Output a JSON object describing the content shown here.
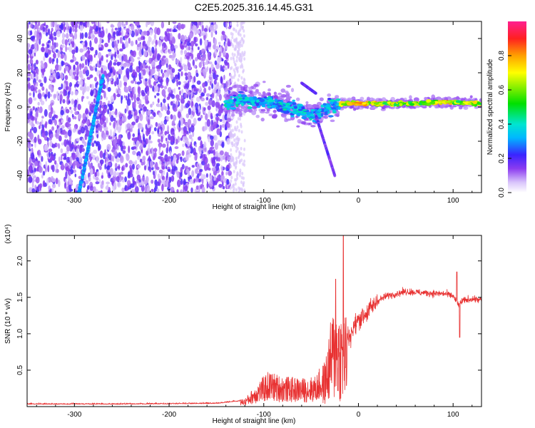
{
  "chart_data": [
    {
      "type": "heatmap",
      "title": "C2E5.2025.316.14.45.G31",
      "xlabel": "Height of straight line (km)",
      "ylabel": "Frequency (Hz)",
      "xlim": [
        -350,
        130
      ],
      "ylim": [
        -50,
        50
      ],
      "xticks": [
        -300,
        -200,
        -100,
        0,
        100
      ],
      "yticks": [
        -40,
        -20,
        0,
        20,
        40
      ],
      "colorbar": {
        "label": "Normalized spectral amplitude",
        "range": [
          0,
          1
        ],
        "ticks": [
          "0.0",
          "0.2",
          "0.4",
          "0.6",
          "0.8"
        ]
      },
      "features": {
        "diagonal_streak": {
          "x": [
            -295,
            -270
          ],
          "y": [
            -50,
            18
          ],
          "amplitude": 0.25
        },
        "noise_region_x": [
          -350,
          -135
        ],
        "central_band": [
          {
            "x": -140,
            "y": 2
          },
          {
            "x": -120,
            "y": 4
          },
          {
            "x": -100,
            "y": 3
          },
          {
            "x": -80,
            "y": 1
          },
          {
            "x": -60,
            "y": -3
          },
          {
            "x": -45,
            "y": -4
          },
          {
            "x": -30,
            "y": 0
          },
          {
            "x": -15,
            "y": 2
          },
          {
            "x": 0,
            "y": 2
          },
          {
            "x": 20,
            "y": 2
          },
          {
            "x": 60,
            "y": 2
          },
          {
            "x": 90,
            "y": 3
          },
          {
            "x": 130,
            "y": 2
          }
        ]
      }
    },
    {
      "type": "line",
      "xlabel": "Height of straight line (km)",
      "ylabel": "SNR (10 * v/v)",
      "yscale_label": "(x10⁴)",
      "xlim": [
        -350,
        130
      ],
      "ylim": [
        0,
        2.35
      ],
      "xticks": [
        -300,
        -200,
        -100,
        0,
        100
      ],
      "yticks": [
        "0.5",
        "1.0",
        "1.5",
        "2.0"
      ],
      "color": "#e83232",
      "series": [
        {
          "name": "SNR",
          "x": [
            -350,
            -250,
            -150,
            -120,
            -105,
            -95,
            -80,
            -60,
            -45,
            -35,
            -28,
            -22,
            -18,
            -15,
            -10,
            0,
            10,
            20,
            30,
            50,
            70,
            90,
            100,
            105,
            110,
            120,
            130
          ],
          "y": [
            0.03,
            0.03,
            0.04,
            0.08,
            0.25,
            0.35,
            0.3,
            0.28,
            0.3,
            0.5,
            1.0,
            1.1,
            1.0,
            1.0,
            0.95,
            1.2,
            1.3,
            1.45,
            1.52,
            1.58,
            1.56,
            1.55,
            1.52,
            1.4,
            1.45,
            1.48,
            1.46
          ]
        }
      ],
      "peaks": [
        {
          "x": -16,
          "y": 2.35
        },
        {
          "x": -24,
          "y": 1.75
        },
        {
          "x": 104,
          "y": 1.85
        },
        {
          "x": 107,
          "y": 0.95
        }
      ]
    }
  ]
}
